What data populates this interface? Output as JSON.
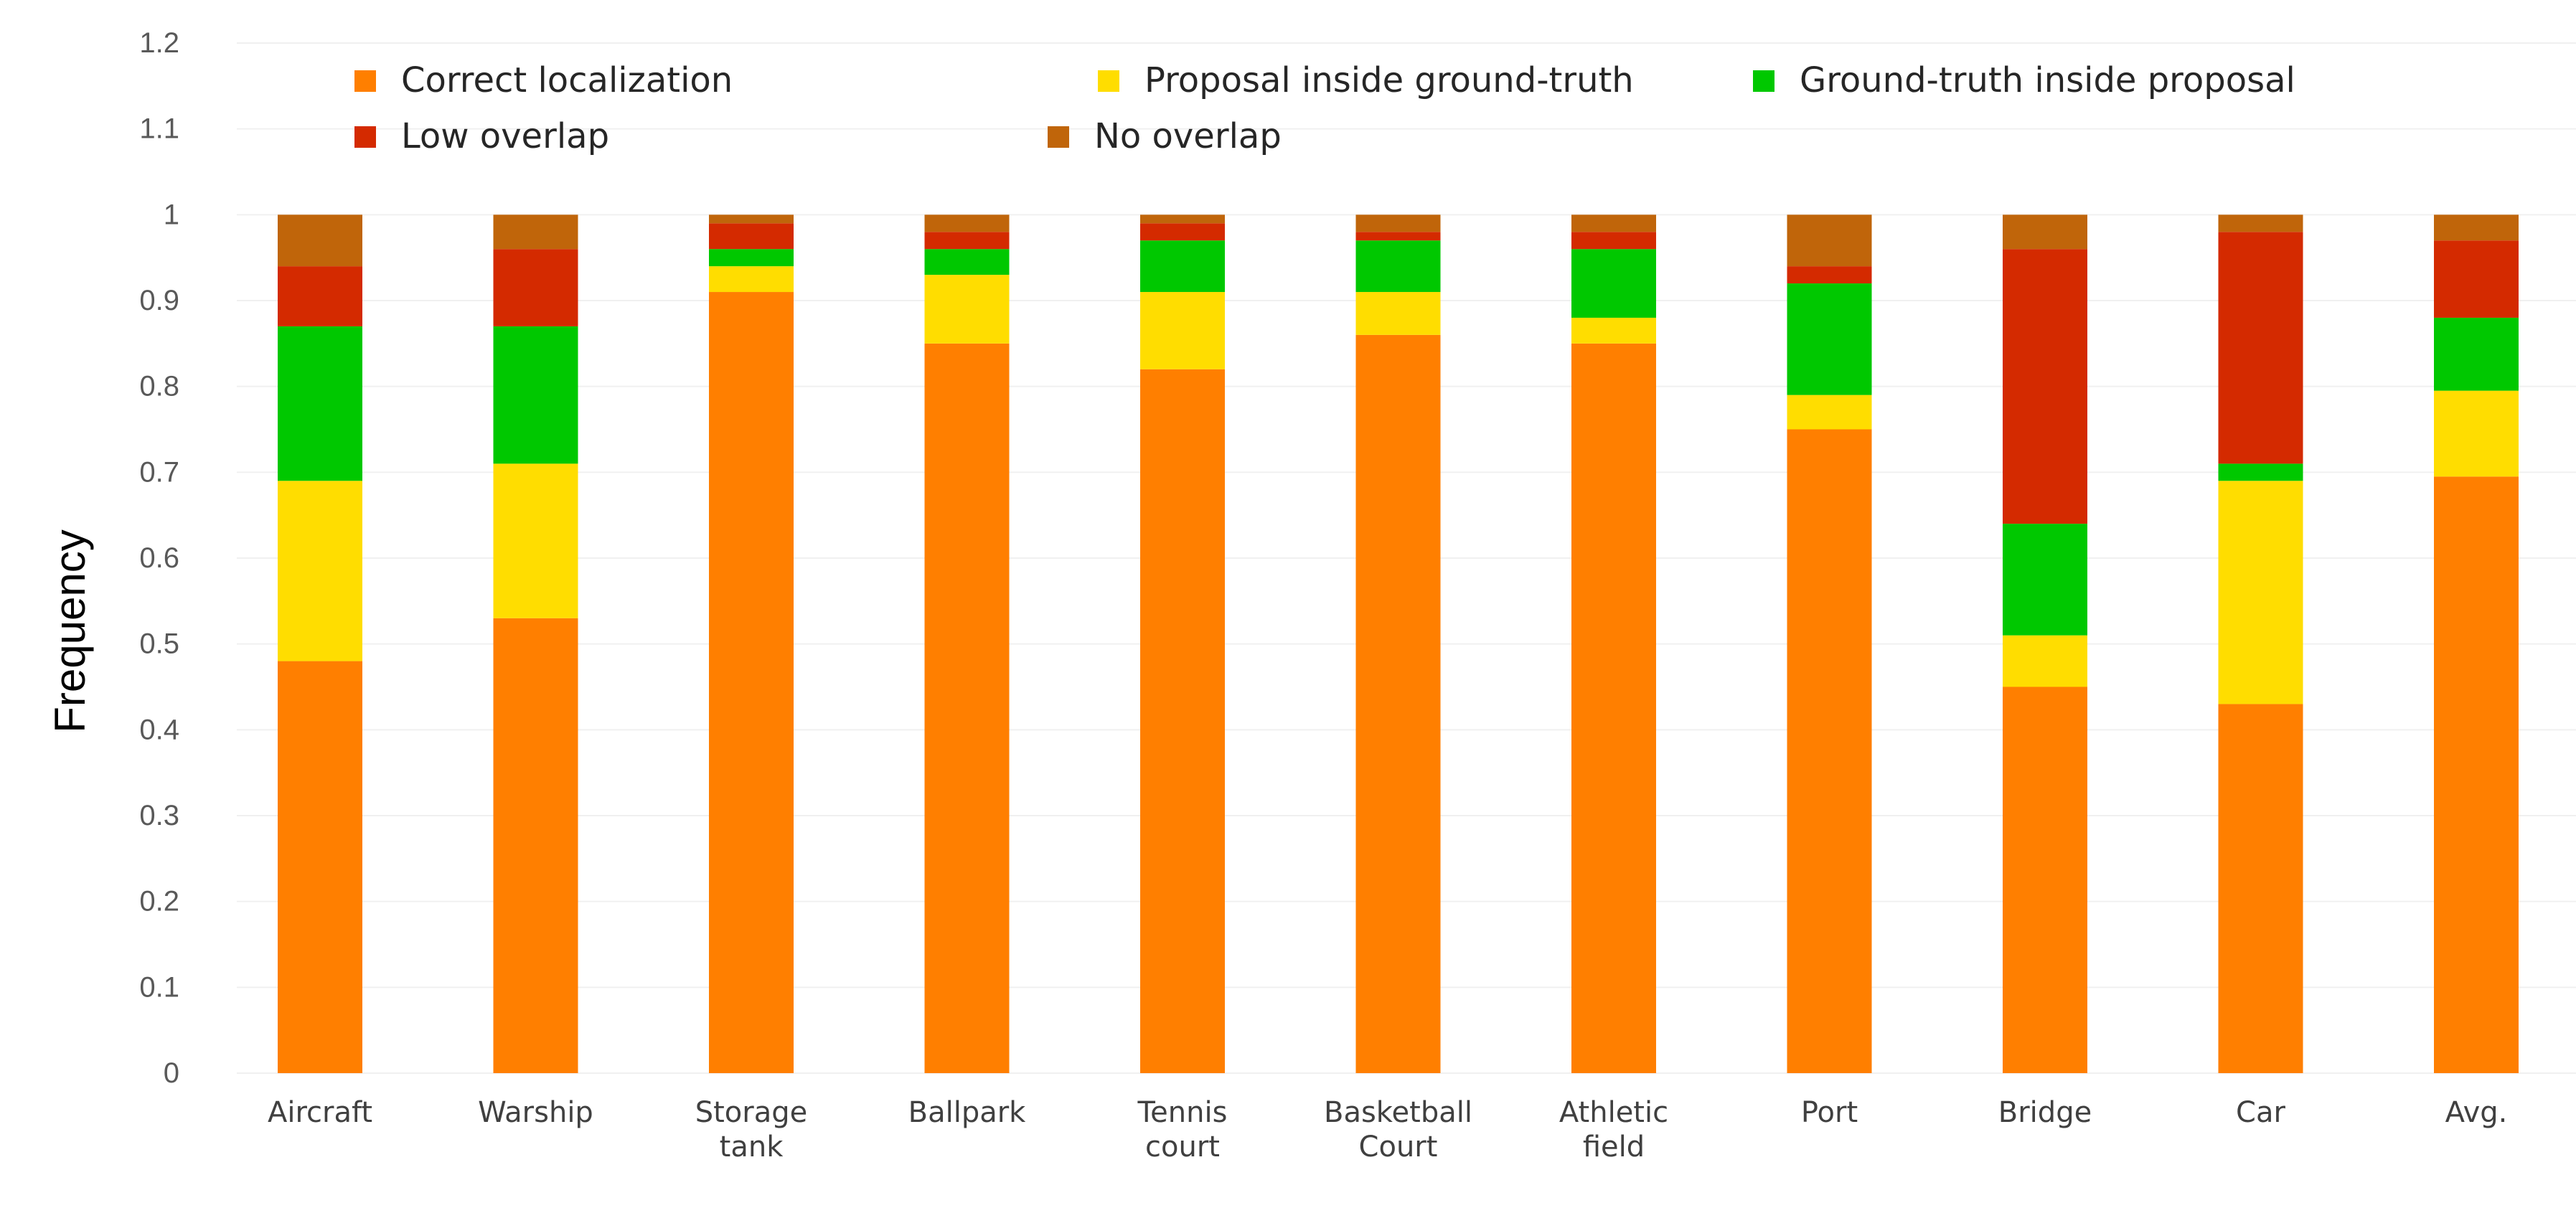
{
  "chart_data": {
    "type": "bar",
    "stacked": true,
    "title": "",
    "xlabel": "",
    "ylabel": "Frequency",
    "ylim": [
      0,
      1.2
    ],
    "yticks": [
      "0",
      "0.1",
      "0.2",
      "0.3",
      "0.4",
      "0.5",
      "0.6",
      "0.7",
      "0.8",
      "0.9",
      "1",
      "1.1",
      "1.2"
    ],
    "grid": true,
    "legend_position": "top",
    "categories": [
      [
        "Aircraft"
      ],
      [
        "Warship"
      ],
      [
        "Storage",
        "tank"
      ],
      [
        "Ballpark"
      ],
      [
        "Tennis",
        "court"
      ],
      [
        "Basketball",
        "Court"
      ],
      [
        "Athletic",
        "field"
      ],
      [
        "Port"
      ],
      [
        "Bridge"
      ],
      [
        "Car"
      ],
      [
        "Avg."
      ]
    ],
    "series": [
      {
        "name": "Correct localization",
        "color": "#FF7F00",
        "values": [
          0.48,
          0.53,
          0.91,
          0.85,
          0.82,
          0.86,
          0.85,
          0.75,
          0.45,
          0.43,
          0.695
        ]
      },
      {
        "name": "Proposal  inside ground-truth",
        "color": "#FFDD00",
        "values": [
          0.21,
          0.18,
          0.03,
          0.08,
          0.09,
          0.05,
          0.03,
          0.04,
          0.06,
          0.26,
          0.1
        ]
      },
      {
        "name": "Ground-truth inside proposal",
        "color": "#00C800",
        "values": [
          0.18,
          0.16,
          0.02,
          0.03,
          0.06,
          0.06,
          0.08,
          0.13,
          0.13,
          0.02,
          0.085
        ]
      },
      {
        "name": "Low overlap",
        "color": "#D42A00",
        "values": [
          0.07,
          0.09,
          0.03,
          0.02,
          0.02,
          0.01,
          0.02,
          0.02,
          0.32,
          0.27,
          0.09
        ]
      },
      {
        "name": "No overlap",
        "color": "#C0650A",
        "values": [
          0.06,
          0.04,
          0.01,
          0.02,
          0.01,
          0.02,
          0.02,
          0.06,
          0.04,
          0.02,
          0.03
        ]
      }
    ]
  }
}
